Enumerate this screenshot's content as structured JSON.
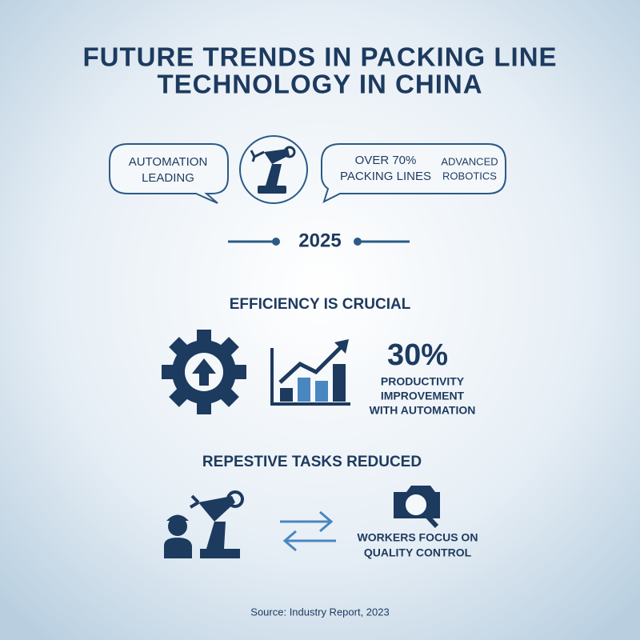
{
  "title": {
    "lines": [
      "FUTURE TRENDS IN PACKING LINE",
      "TECHNOLOGY IN CHINA"
    ]
  },
  "bubbles": {
    "left": [
      "AUTOMATION",
      "LEADING"
    ],
    "right_main": [
      "OVER 70%",
      "PACKING LINES"
    ],
    "right_side": [
      "ADVANCED",
      "ROBOTICS"
    ]
  },
  "timeline": {
    "year": "2025"
  },
  "efficiency": {
    "heading": "EFFICIENCY IS CRUCIAL",
    "stat": "30%",
    "lines": [
      "PRODUCTIVITY",
      "IMPROVEMENT",
      "WITH AUTOMATION"
    ]
  },
  "tasks": {
    "heading": "REPESTIVE TASKS REDUCED",
    "lines": [
      "WORKERS FOCUS ON",
      "QUALITY CONTROL"
    ]
  },
  "source": "Source: Industry Report, 2023"
}
